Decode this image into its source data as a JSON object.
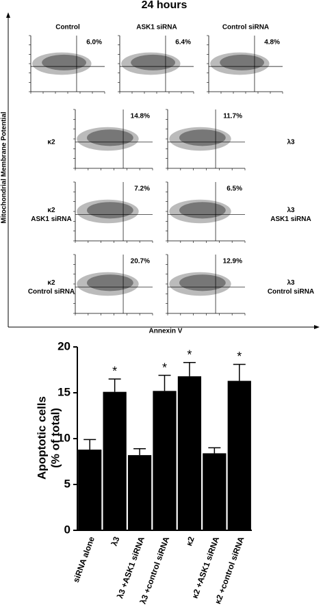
{
  "flow": {
    "title": "24 hours",
    "y_label": "Mitochondrial Membrane Potential",
    "x_label": "Annexin V",
    "top_row": [
      {
        "label": "Control",
        "percent": "6.0%"
      },
      {
        "label": "ASK1 siRNA",
        "percent": "6.4%"
      },
      {
        "label": "Control siRNA",
        "percent": "4.8%"
      }
    ],
    "rows": [
      {
        "left": [
          "κ2"
        ],
        "right": [
          "λ3"
        ],
        "percents": [
          "14.8%",
          "11.7%"
        ]
      },
      {
        "left": [
          "κ2",
          "ASK1 siRNA"
        ],
        "right": [
          "λ3",
          "ASK1 siRNA"
        ],
        "percents": [
          "7.2%",
          "6.5%"
        ]
      },
      {
        "left": [
          "κ2",
          "Control siRNA"
        ],
        "right": [
          "λ3",
          "Control siRNA"
        ],
        "percents": [
          "20.7%",
          "12.9%"
        ]
      }
    ]
  },
  "chart_data": {
    "type": "bar",
    "ylabel": [
      "Apoptotic cells",
      "(% of total)"
    ],
    "categories": [
      "siRNA alone",
      "λ3",
      "λ3 +ASK1 siRNA",
      "λ3 +control siRNA",
      "κ2",
      "κ2 +ASK1 siRNA",
      "κ2 +control siRNA"
    ],
    "values": [
      8.8,
      15.1,
      8.2,
      15.2,
      16.8,
      8.4,
      16.3
    ],
    "errors": [
      1.1,
      1.4,
      0.7,
      1.7,
      1.5,
      0.6,
      1.8
    ],
    "significance": [
      null,
      "*",
      null,
      "*",
      "*",
      null,
      "*"
    ],
    "color": "#000000",
    "ylim": [
      0,
      20
    ],
    "yticks": [
      0,
      5,
      10,
      15,
      20
    ]
  }
}
